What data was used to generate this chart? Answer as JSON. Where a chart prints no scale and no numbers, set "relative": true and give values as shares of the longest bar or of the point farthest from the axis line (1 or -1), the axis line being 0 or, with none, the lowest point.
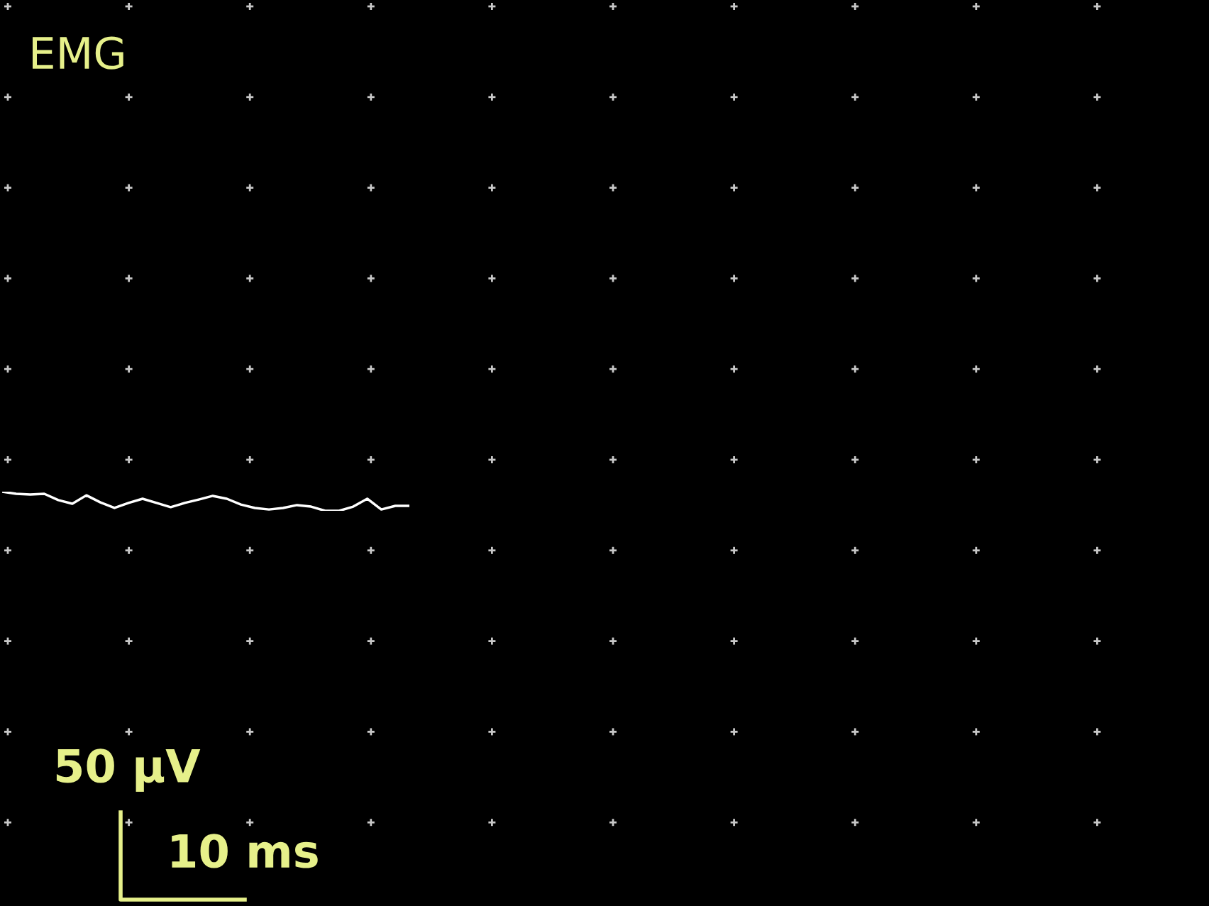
{
  "chart_data": {
    "type": "line",
    "title": "EMG",
    "relative": true,
    "categories": [
      null,
      null,
      null,
      null,
      null,
      null,
      null,
      null,
      null,
      null,
      null,
      null,
      null,
      null,
      null,
      null,
      null,
      null,
      null,
      null,
      null,
      null,
      null,
      null,
      null,
      null,
      null,
      null,
      null,
      null
    ],
    "series": [
      {
        "color": "#ffffff",
        "values": [
          1,
          0.89,
          0.85,
          0.89,
          0.56,
          0.37,
          0.81,
          0.44,
          0.15,
          0.41,
          0.63,
          0.41,
          0.19,
          0.41,
          0.59,
          0.78,
          0.63,
          0.33,
          0.15,
          0.07,
          0.15,
          0.3,
          0.22,
          0,
          0,
          0.22,
          0.63,
          0.07,
          0.26,
          0.26
        ]
      }
    ],
    "annotations": [
      "50 µV",
      "10 ms"
    ]
  }
}
